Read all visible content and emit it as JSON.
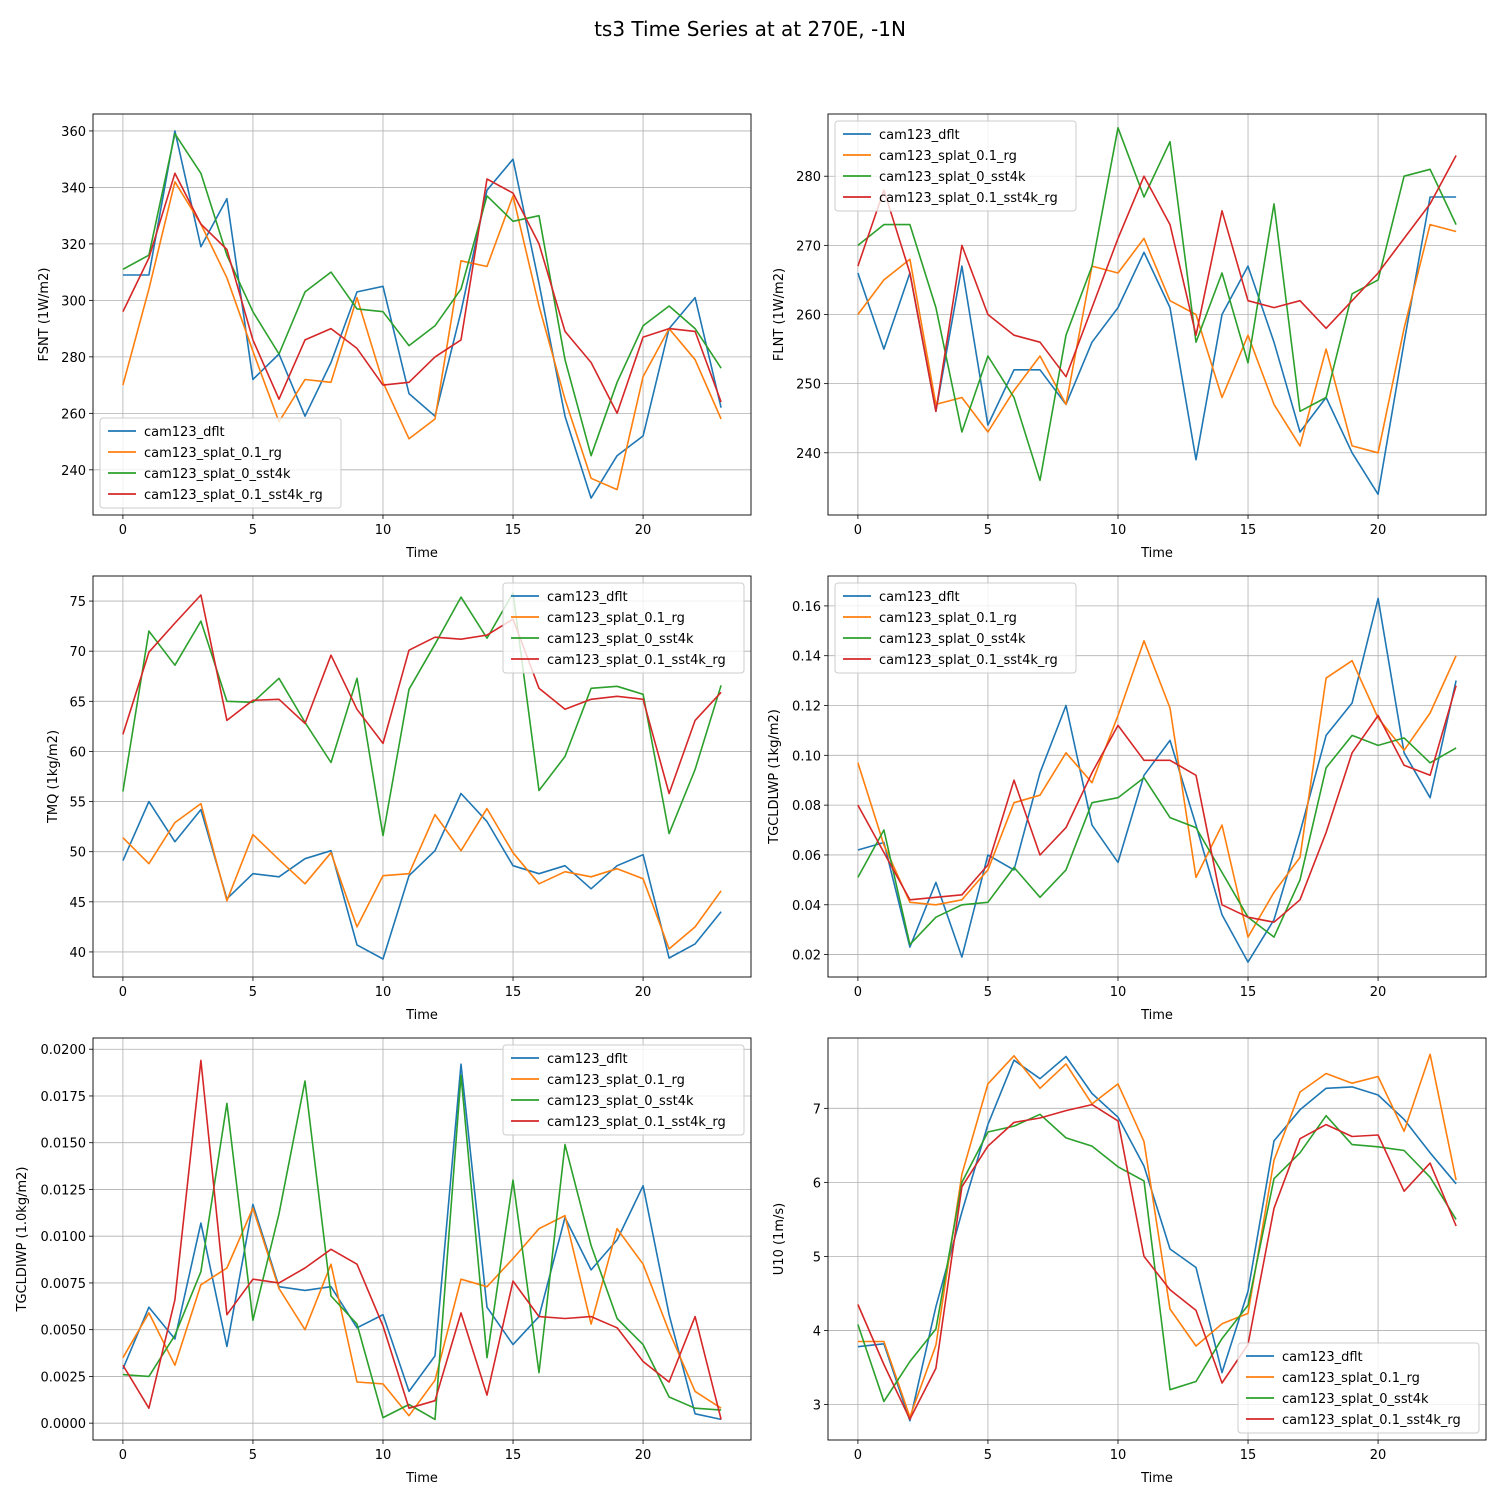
{
  "title": "ts3 Time Series at at 270E, -1N",
  "colors": [
    "#1f77b4",
    "#ff7f0e",
    "#2ca02c",
    "#d62728"
  ],
  "chart_data": [
    {
      "type": "line",
      "ylabel": "FSNT (1W/m2)",
      "xlabel": "Time",
      "xlim": [
        -1.15,
        24.15
      ],
      "ylim": [
        224,
        366
      ],
      "xticks": [
        0,
        5,
        10,
        15,
        20
      ],
      "yticks": [
        240,
        260,
        280,
        300,
        320,
        340,
        360
      ],
      "ytick_labels": [
        "240",
        "260",
        "280",
        "300",
        "320",
        "340",
        "360"
      ],
      "legend": "lower-left",
      "x": [
        0,
        1,
        2,
        3,
        4,
        5,
        6,
        7,
        8,
        9,
        10,
        11,
        12,
        13,
        14,
        15,
        16,
        17,
        18,
        19,
        20,
        21,
        22,
        23
      ],
      "series": [
        {
          "name": "cam123_dflt",
          "values": [
            309,
            309,
            360,
            319,
            336,
            272,
            281,
            259,
            278,
            303,
            305,
            267,
            259,
            296,
            339,
            350,
            306,
            259,
            230,
            245,
            252,
            290,
            301,
            262
          ]
        },
        {
          "name": "cam123_splat_0.1_rg",
          "values": [
            270,
            304,
            342,
            327,
            308,
            282,
            257,
            272,
            271,
            301,
            271,
            251,
            258,
            314,
            312,
            337,
            298,
            265,
            237,
            233,
            273,
            290,
            279,
            258
          ]
        },
        {
          "name": "cam123_splat_0_sst4k",
          "values": [
            311,
            316,
            359,
            345,
            316,
            296,
            281,
            303,
            310,
            297,
            296,
            284,
            291,
            304,
            337,
            328,
            330,
            279,
            245,
            271,
            291,
            298,
            290,
            276
          ]
        },
        {
          "name": "cam123_splat_0.1_sst4k_rg",
          "values": [
            296,
            315,
            345,
            327,
            318,
            286,
            265,
            286,
            290,
            283,
            270,
            271,
            280,
            286,
            343,
            338,
            320,
            289,
            278,
            260,
            287,
            290,
            289,
            264
          ]
        }
      ]
    },
    {
      "type": "line",
      "ylabel": "FLNT (1W/m2)",
      "xlabel": "Time",
      "xlim": [
        -1.15,
        24.15
      ],
      "ylim": [
        231,
        289
      ],
      "xticks": [
        0,
        5,
        10,
        15,
        20
      ],
      "yticks": [
        240,
        250,
        260,
        270,
        280
      ],
      "ytick_labels": [
        "240",
        "250",
        "260",
        "270",
        "280"
      ],
      "legend": "upper-left",
      "x": [
        0,
        1,
        2,
        3,
        4,
        5,
        6,
        7,
        8,
        9,
        10,
        11,
        12,
        13,
        14,
        15,
        16,
        17,
        18,
        19,
        20,
        21,
        22,
        23
      ],
      "series": [
        {
          "name": "cam123_dflt",
          "values": [
            266,
            255,
            266,
            246,
            267,
            244,
            252,
            252,
            247,
            256,
            261,
            269,
            261,
            239,
            260,
            267,
            256,
            243,
            248,
            240,
            234,
            256,
            277,
            277
          ]
        },
        {
          "name": "cam123_splat_0.1_rg",
          "values": [
            260,
            265,
            268,
            247,
            248,
            243,
            249,
            254,
            247,
            267,
            266,
            271,
            262,
            260,
            248,
            257,
            247,
            241,
            255,
            241,
            240,
            258,
            273,
            272
          ]
        },
        {
          "name": "cam123_splat_0_sst4k",
          "values": [
            270,
            273,
            273,
            261,
            243,
            254,
            248,
            236,
            257,
            267,
            287,
            277,
            285,
            256,
            266,
            253,
            276,
            246,
            248,
            263,
            265,
            280,
            281,
            273
          ]
        },
        {
          "name": "cam123_splat_0.1_sst4k_rg",
          "values": [
            267,
            278,
            266,
            246,
            270,
            260,
            257,
            256,
            251,
            261,
            271,
            280,
            273,
            257,
            275,
            262,
            261,
            262,
            258,
            262,
            266,
            271,
            276,
            283
          ]
        }
      ]
    },
    {
      "type": "line",
      "ylabel": "TMQ (1kg/m2)",
      "xlabel": "Time",
      "xlim": [
        -1.15,
        24.15
      ],
      "ylim": [
        37.5,
        77.5
      ],
      "xticks": [
        0,
        5,
        10,
        15,
        20
      ],
      "yticks": [
        40,
        45,
        50,
        55,
        60,
        65,
        70,
        75
      ],
      "ytick_labels": [
        "40",
        "45",
        "50",
        "55",
        "60",
        "65",
        "70",
        "75"
      ],
      "legend": "upper-right",
      "x": [
        0,
        1,
        2,
        3,
        4,
        5,
        6,
        7,
        8,
        9,
        10,
        11,
        12,
        13,
        14,
        15,
        16,
        17,
        18,
        19,
        20,
        21,
        22,
        23
      ],
      "series": [
        {
          "name": "cam123_dflt",
          "values": [
            49.1,
            55.0,
            51.0,
            54.2,
            45.3,
            47.8,
            47.5,
            49.3,
            50.1,
            40.7,
            39.3,
            47.6,
            50.1,
            55.8,
            53.0,
            48.6,
            47.8,
            48.6,
            46.3,
            48.6,
            49.7,
            39.4,
            40.8,
            44.0
          ]
        },
        {
          "name": "cam123_splat_0.1_rg",
          "values": [
            51.4,
            48.8,
            52.9,
            54.8,
            45.1,
            51.7,
            49.2,
            46.8,
            49.9,
            42.5,
            47.6,
            47.8,
            53.7,
            50.1,
            54.3,
            49.9,
            46.8,
            48.0,
            47.5,
            48.3,
            47.3,
            40.3,
            42.5,
            46.1
          ]
        },
        {
          "name": "cam123_splat_0_sst4k",
          "values": [
            56.0,
            72.0,
            68.6,
            73.0,
            65.0,
            64.9,
            67.3,
            62.9,
            58.9,
            67.3,
            51.6,
            66.2,
            70.7,
            75.4,
            71.3,
            75.8,
            56.1,
            59.5,
            66.3,
            66.5,
            65.7,
            51.8,
            58.2,
            66.6
          ]
        },
        {
          "name": "cam123_splat_0.1_sst4k_rg",
          "values": [
            61.7,
            69.9,
            72.8,
            75.6,
            63.1,
            65.1,
            65.2,
            62.8,
            69.6,
            64.2,
            60.8,
            70.1,
            71.4,
            71.2,
            71.6,
            73.2,
            66.3,
            64.2,
            65.2,
            65.5,
            65.2,
            55.8,
            63.1,
            65.9
          ]
        }
      ]
    },
    {
      "type": "line",
      "ylabel": "TGCLDLWP (1kg/m2)",
      "xlabel": "Time",
      "xlim": [
        -1.15,
        24.15
      ],
      "ylim": [
        0.011,
        0.172
      ],
      "xticks": [
        0,
        5,
        10,
        15,
        20
      ],
      "yticks": [
        0.02,
        0.04,
        0.06,
        0.08,
        0.1,
        0.12,
        0.14,
        0.16
      ],
      "ytick_labels": [
        "0.02",
        "0.04",
        "0.06",
        "0.08",
        "0.10",
        "0.12",
        "0.14",
        "0.16"
      ],
      "legend": "upper-left",
      "x": [
        0,
        1,
        2,
        3,
        4,
        5,
        6,
        7,
        8,
        9,
        10,
        11,
        12,
        13,
        14,
        15,
        16,
        17,
        18,
        19,
        20,
        21,
        22,
        23
      ],
      "series": [
        {
          "name": "cam123_dflt",
          "values": [
            0.062,
            0.065,
            0.023,
            0.049,
            0.019,
            0.06,
            0.054,
            0.093,
            0.12,
            0.072,
            0.057,
            0.092,
            0.106,
            0.072,
            0.036,
            0.017,
            0.034,
            0.069,
            0.108,
            0.121,
            0.163,
            0.101,
            0.083,
            0.13
          ]
        },
        {
          "name": "cam123_splat_0.1_rg",
          "values": [
            0.097,
            0.064,
            0.041,
            0.04,
            0.042,
            0.054,
            0.081,
            0.084,
            0.101,
            0.089,
            0.116,
            0.146,
            0.119,
            0.051,
            0.072,
            0.027,
            0.045,
            0.059,
            0.131,
            0.138,
            0.115,
            0.102,
            0.117,
            0.14
          ]
        },
        {
          "name": "cam123_splat_0_sst4k",
          "values": [
            0.051,
            0.07,
            0.024,
            0.035,
            0.04,
            0.041,
            0.055,
            0.043,
            0.054,
            0.081,
            0.083,
            0.091,
            0.075,
            0.071,
            0.053,
            0.035,
            0.027,
            0.05,
            0.095,
            0.108,
            0.104,
            0.107,
            0.097,
            0.103
          ]
        },
        {
          "name": "cam123_splat_0.1_sst4k_rg",
          "values": [
            0.08,
            0.061,
            0.042,
            0.043,
            0.044,
            0.056,
            0.09,
            0.06,
            0.071,
            0.093,
            0.112,
            0.098,
            0.098,
            0.092,
            0.04,
            0.035,
            0.033,
            0.042,
            0.069,
            0.101,
            0.116,
            0.096,
            0.092,
            0.128
          ]
        }
      ]
    },
    {
      "type": "line",
      "ylabel": "TGCLDIWP (1.0kg/m2)",
      "xlabel": "Time",
      "xlim": [
        -1.15,
        24.15
      ],
      "ylim": [
        -0.0009,
        0.0206
      ],
      "xticks": [
        0,
        5,
        10,
        15,
        20
      ],
      "yticks": [
        0.0,
        0.0025,
        0.005,
        0.0075,
        0.01,
        0.0125,
        0.015,
        0.0175,
        0.02
      ],
      "ytick_labels": [
        "0.0000",
        "0.0025",
        "0.0050",
        "0.0075",
        "0.0100",
        "0.0125",
        "0.0150",
        "0.0175",
        "0.0200"
      ],
      "legend": "upper-right",
      "x": [
        0,
        1,
        2,
        3,
        4,
        5,
        6,
        7,
        8,
        9,
        10,
        11,
        12,
        13,
        14,
        15,
        16,
        17,
        18,
        19,
        20,
        21,
        22,
        23
      ],
      "series": [
        {
          "name": "cam123_dflt",
          "values": [
            0.0029,
            0.0062,
            0.0045,
            0.0107,
            0.0041,
            0.0117,
            0.0073,
            0.0071,
            0.0073,
            0.0051,
            0.0058,
            0.0017,
            0.0036,
            0.0192,
            0.0062,
            0.0042,
            0.0057,
            0.011,
            0.0082,
            0.0098,
            0.0127,
            0.0058,
            0.0005,
            0.0002
          ]
        },
        {
          "name": "cam123_splat_0.1_rg",
          "values": [
            0.0035,
            0.0059,
            0.0031,
            0.0074,
            0.0083,
            0.0115,
            0.0072,
            0.005,
            0.0085,
            0.0022,
            0.0021,
            0.0004,
            0.0023,
            0.0077,
            0.0073,
            0.0088,
            0.0104,
            0.0111,
            0.0053,
            0.0104,
            0.0085,
            0.0049,
            0.0017,
            0.0008
          ]
        },
        {
          "name": "cam123_splat_0_sst4k",
          "values": [
            0.0026,
            0.0025,
            0.0047,
            0.0081,
            0.0171,
            0.0055,
            0.0112,
            0.0183,
            0.0068,
            0.0053,
            0.0003,
            0.001,
            0.0002,
            0.0186,
            0.0035,
            0.013,
            0.0027,
            0.0149,
            0.0095,
            0.0056,
            0.0042,
            0.0014,
            0.0008,
            0.0007
          ]
        },
        {
          "name": "cam123_splat_0.1_sst4k_rg",
          "values": [
            0.0031,
            0.0008,
            0.0066,
            0.0194,
            0.0058,
            0.0077,
            0.0075,
            0.0083,
            0.0093,
            0.0085,
            0.0052,
            0.0008,
            0.0012,
            0.0059,
            0.0015,
            0.0076,
            0.0057,
            0.0056,
            0.0057,
            0.0051,
            0.0033,
            0.0022,
            0.0057,
            0.0002
          ]
        }
      ]
    },
    {
      "type": "line",
      "ylabel": "U10 (1m/s)",
      "xlabel": "Time",
      "xlim": [
        -1.15,
        24.15
      ],
      "ylim": [
        2.52,
        7.95
      ],
      "xticks": [
        0,
        5,
        10,
        15,
        20
      ],
      "yticks": [
        3,
        4,
        5,
        6,
        7
      ],
      "ytick_labels": [
        "3",
        "4",
        "5",
        "6",
        "7"
      ],
      "legend": "lower-right",
      "x": [
        0,
        1,
        2,
        3,
        4,
        5,
        6,
        7,
        8,
        9,
        10,
        11,
        12,
        13,
        14,
        15,
        16,
        17,
        18,
        19,
        20,
        21,
        22,
        23
      ],
      "series": [
        {
          "name": "cam123_dflt",
          "values": [
            3.78,
            3.82,
            2.78,
            4.32,
            5.6,
            6.78,
            7.65,
            7.4,
            7.7,
            7.2,
            6.88,
            6.22,
            5.1,
            4.85,
            3.43,
            4.53,
            6.56,
            6.98,
            7.27,
            7.29,
            7.18,
            6.85,
            6.4,
            5.98
          ]
        },
        {
          "name": "cam123_splat_0.1_rg",
          "values": [
            3.85,
            3.85,
            2.83,
            3.8,
            6.11,
            7.33,
            7.71,
            7.27,
            7.6,
            7.06,
            7.33,
            6.55,
            4.29,
            3.79,
            4.09,
            4.23,
            6.3,
            7.22,
            7.47,
            7.34,
            7.43,
            6.69,
            7.73,
            6.03
          ]
        },
        {
          "name": "cam123_splat_0_sst4k",
          "values": [
            4.08,
            3.04,
            3.58,
            4.02,
            6.0,
            6.68,
            6.76,
            6.92,
            6.6,
            6.49,
            6.21,
            6.02,
            3.2,
            3.31,
            3.89,
            4.34,
            6.05,
            6.4,
            6.9,
            6.51,
            6.48,
            6.43,
            6.07,
            5.5
          ]
        },
        {
          "name": "cam123_splat_0.1_sst4k_rg",
          "values": [
            4.35,
            3.54,
            2.8,
            3.49,
            5.94,
            6.49,
            6.81,
            6.87,
            6.97,
            7.05,
            6.83,
            5.0,
            4.55,
            4.27,
            3.29,
            3.81,
            5.65,
            6.59,
            6.78,
            6.62,
            6.64,
            5.88,
            6.26,
            5.41
          ]
        }
      ]
    }
  ]
}
